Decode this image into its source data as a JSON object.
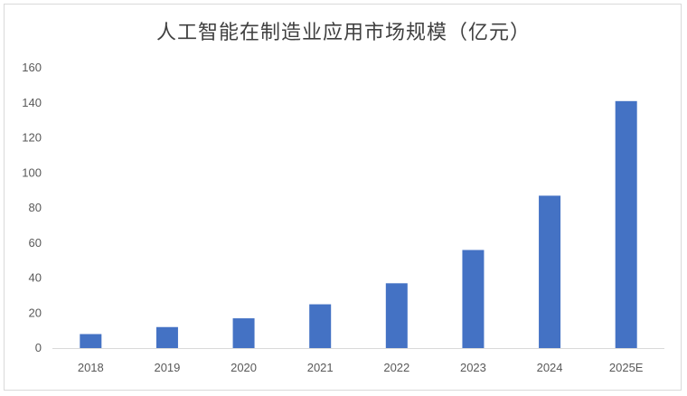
{
  "chart_data": {
    "type": "bar",
    "title": "人工智能在制造业应用市场规模（亿元）",
    "categories": [
      "2018",
      "2019",
      "2020",
      "2021",
      "2022",
      "2023",
      "2024",
      "2025E"
    ],
    "values": [
      8,
      12,
      17,
      25,
      37,
      56,
      87,
      141
    ],
    "ylim": [
      0,
      160
    ],
    "yticks": [
      0,
      20,
      40,
      60,
      80,
      100,
      120,
      140,
      160
    ],
    "xlabel": "",
    "ylabel": "",
    "grid": false,
    "legend": "none",
    "bar_color": "#4472c4",
    "axis_color": "#d9d9d9"
  }
}
